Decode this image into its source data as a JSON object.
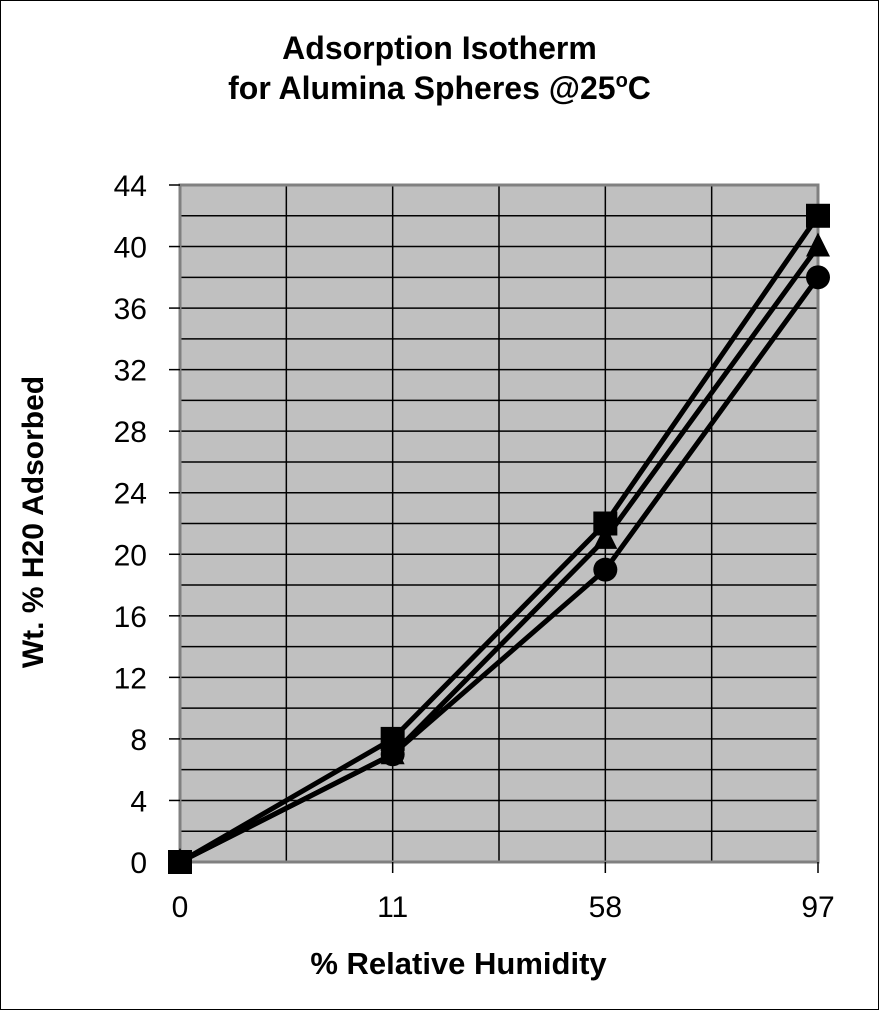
{
  "chart": {
    "title_line1": "Adsorption Isotherm",
    "title_line2": "for Alumina Spheres @25",
    "title_degree": "o",
    "title_unit": "C",
    "xlabel": "% Relative Humidity",
    "ylabel": "Wt. % H20 Adsorbed"
  },
  "colors": {
    "plot_background": "#c0c0c0",
    "plot_border": "#808080",
    "gridline": "#000000",
    "series_line": "#000000"
  },
  "chart_data": {
    "type": "line",
    "title": "Adsorption Isotherm for Alumina Spheres @25°C",
    "xlabel": "% Relative Humidity",
    "ylabel": "Wt. % H20 Adsorbed",
    "categories": [
      "0",
      "11",
      "58",
      "97"
    ],
    "series": [
      {
        "name": "Square markers",
        "marker": "square",
        "values": [
          0,
          8,
          22,
          42
        ]
      },
      {
        "name": "Triangle markers",
        "marker": "triangle",
        "values": [
          0,
          7,
          21,
          40
        ]
      },
      {
        "name": "Circle markers",
        "marker": "circle",
        "values": [
          0,
          7,
          19,
          38
        ]
      }
    ],
    "ylim": [
      0,
      44
    ],
    "yticks": [
      0,
      4,
      8,
      12,
      16,
      20,
      24,
      28,
      32,
      36,
      40,
      44
    ],
    "grid": true,
    "legend": "none"
  }
}
